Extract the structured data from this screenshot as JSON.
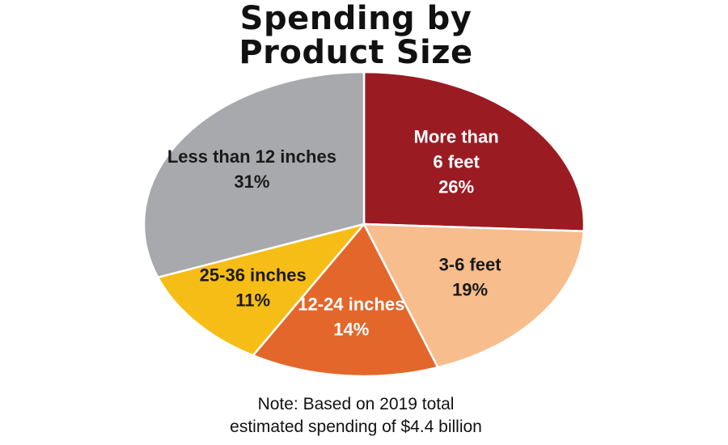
{
  "chart_data": {
    "type": "pie",
    "title_lines": [
      "Spending by",
      "Product Size"
    ],
    "note_lines": [
      "Note: Based on 2019 total",
      "estimated spending of $4.4 billion"
    ],
    "slices": [
      {
        "label_lines": [
          "More than",
          "6 feet"
        ],
        "value_label": "26%",
        "value": 26,
        "color": "#9b1b23",
        "text_color": "#ffffff"
      },
      {
        "label_lines": [
          "3-6 feet"
        ],
        "value_label": "19%",
        "value": 19,
        "color": "#f8bd8c",
        "text_color": "#1a1a1a"
      },
      {
        "label_lines": [
          "12-24 inches"
        ],
        "value_label": "14%",
        "value": 14,
        "color": "#e3672a",
        "text_color": "#ffffff"
      },
      {
        "label_lines": [
          "25-36 inches"
        ],
        "value_label": "11%",
        "value": 11,
        "color": "#f7bd17",
        "text_color": "#1a1a1a"
      },
      {
        "label_lines": [
          "Less than 12 inches"
        ],
        "value_label": "31%",
        "value": 31,
        "color": "#a7a9ac",
        "text_color": "#1a1a1a"
      }
    ]
  }
}
